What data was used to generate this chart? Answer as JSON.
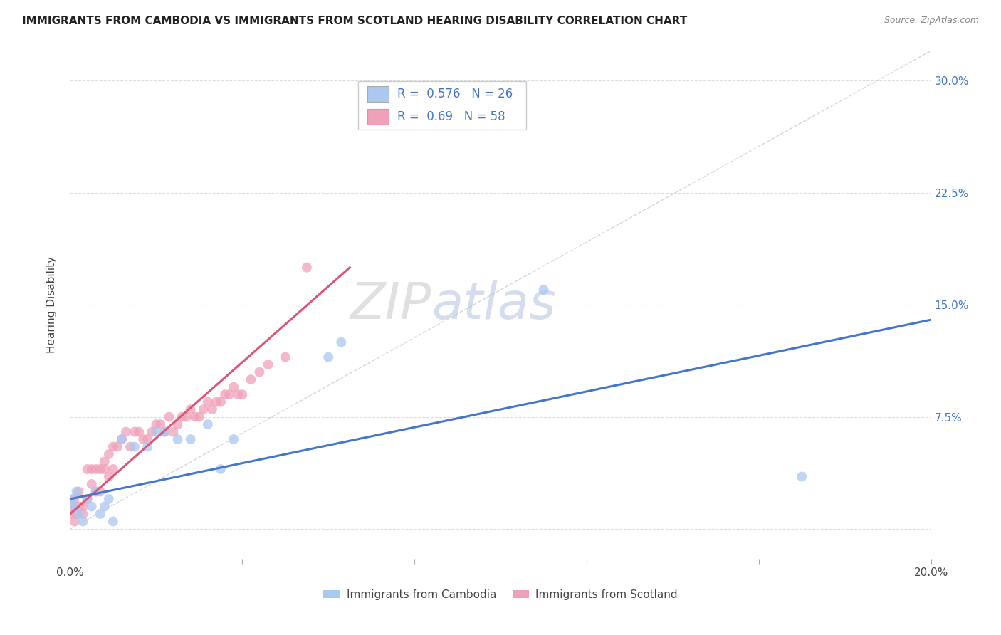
{
  "title": "IMMIGRANTS FROM CAMBODIA VS IMMIGRANTS FROM SCOTLAND HEARING DISABILITY CORRELATION CHART",
  "source": "Source: ZipAtlas.com",
  "ylabel": "Hearing Disability",
  "xlim": [
    0.0,
    0.2
  ],
  "ylim": [
    -0.02,
    0.32
  ],
  "xticks": [
    0.0,
    0.04,
    0.08,
    0.12,
    0.16,
    0.2
  ],
  "xtick_labels": [
    "0.0%",
    "",
    "",
    "",
    "",
    "20.0%"
  ],
  "yticks": [
    0.0,
    0.075,
    0.15,
    0.225,
    0.3
  ],
  "ytick_labels": [
    "",
    "7.5%",
    "15.0%",
    "22.5%",
    "30.0%"
  ],
  "grid_color": "#dddddd",
  "background_color": "#ffffff",
  "diagonal_line_color": "#cccccc",
  "cambodia_color": "#aac8f0",
  "cambodia_line_color": "#4477cc",
  "scotland_color": "#f0a0b8",
  "scotland_line_color": "#dd5577",
  "legend_text_color": "#4477cc",
  "cambodia_R": 0.576,
  "cambodia_N": 26,
  "scotland_R": 0.69,
  "scotland_N": 58,
  "cambodia_x": [
    0.0005,
    0.001,
    0.0015,
    0.002,
    0.003,
    0.004,
    0.005,
    0.006,
    0.007,
    0.008,
    0.009,
    0.01,
    0.012,
    0.015,
    0.018,
    0.02,
    0.022,
    0.025,
    0.028,
    0.032,
    0.035,
    0.038,
    0.06,
    0.063,
    0.11,
    0.17
  ],
  "cambodia_y": [
    0.02,
    0.015,
    0.025,
    0.01,
    0.005,
    0.02,
    0.015,
    0.025,
    0.01,
    0.015,
    0.02,
    0.005,
    0.06,
    0.055,
    0.055,
    0.065,
    0.065,
    0.06,
    0.06,
    0.07,
    0.04,
    0.06,
    0.115,
    0.125,
    0.16,
    0.035
  ],
  "scotland_x": [
    0.0002,
    0.0005,
    0.001,
    0.001,
    0.0015,
    0.002,
    0.002,
    0.003,
    0.003,
    0.004,
    0.004,
    0.005,
    0.005,
    0.006,
    0.006,
    0.007,
    0.007,
    0.008,
    0.008,
    0.009,
    0.009,
    0.01,
    0.01,
    0.011,
    0.012,
    0.013,
    0.014,
    0.015,
    0.016,
    0.017,
    0.018,
    0.019,
    0.02,
    0.021,
    0.022,
    0.023,
    0.024,
    0.025,
    0.026,
    0.027,
    0.028,
    0.029,
    0.03,
    0.031,
    0.032,
    0.033,
    0.034,
    0.035,
    0.036,
    0.037,
    0.038,
    0.039,
    0.04,
    0.042,
    0.044,
    0.046,
    0.05,
    0.055
  ],
  "scotland_y": [
    0.01,
    0.015,
    0.005,
    0.02,
    0.01,
    0.015,
    0.025,
    0.01,
    0.015,
    0.04,
    0.02,
    0.03,
    0.04,
    0.04,
    0.025,
    0.025,
    0.04,
    0.04,
    0.045,
    0.05,
    0.035,
    0.04,
    0.055,
    0.055,
    0.06,
    0.065,
    0.055,
    0.065,
    0.065,
    0.06,
    0.06,
    0.065,
    0.07,
    0.07,
    0.065,
    0.075,
    0.065,
    0.07,
    0.075,
    0.075,
    0.08,
    0.075,
    0.075,
    0.08,
    0.085,
    0.08,
    0.085,
    0.085,
    0.09,
    0.09,
    0.095,
    0.09,
    0.09,
    0.1,
    0.105,
    0.11,
    0.115,
    0.175
  ],
  "scotland_line_x0": 0.0,
  "scotland_line_y0": 0.01,
  "scotland_line_x1": 0.065,
  "scotland_line_y1": 0.175,
  "cambodia_line_x0": 0.0,
  "cambodia_line_y0": 0.02,
  "cambodia_line_x1": 0.2,
  "cambodia_line_y1": 0.14
}
